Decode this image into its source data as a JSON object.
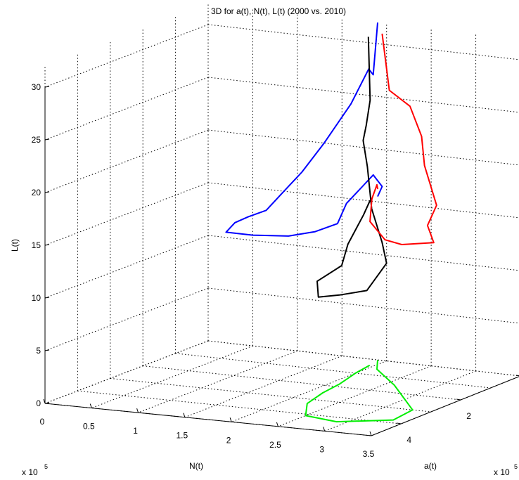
{
  "chart_data": {
    "type": "line",
    "title": "3D for a(t), N(t), L(t) (2000 vs. 2010)",
    "xlabel": "N(t)",
    "ylabel": "a(t)",
    "zlabel": "L(t)",
    "x_scale_label": "x 10",
    "x_scale_exp": "5",
    "y_scale_label": "x 10",
    "y_scale_exp": "5",
    "xlim": [
      0,
      3.5
    ],
    "ylim": [
      0,
      5
    ],
    "zlim": [
      0,
      30
    ],
    "x_ticks": [
      "0",
      "0.5",
      "1",
      "1.5",
      "2",
      "2.5",
      "3",
      "3.5"
    ],
    "y_ticks": [
      "0",
      "2",
      "4"
    ],
    "z_ticks": [
      "0",
      "5",
      "10",
      "15",
      "20",
      "25",
      "30"
    ],
    "grid": true,
    "series": [
      {
        "color": "#0000ff",
        "projection": "N-L side plane (a = 0)",
        "points": [
          [
            1.9,
            32
          ],
          [
            1.85,
            27
          ],
          [
            1.8,
            27.5
          ],
          [
            1.6,
            24
          ],
          [
            1.3,
            20
          ],
          [
            1.05,
            17
          ],
          [
            0.85,
            15
          ],
          [
            0.65,
            13
          ],
          [
            0.45,
            12.2
          ],
          [
            0.3,
            11.5
          ],
          [
            0.2,
            10.5
          ],
          [
            0.5,
            10.5
          ],
          [
            0.9,
            10.8
          ],
          [
            1.2,
            11.5
          ],
          [
            1.45,
            12.5
          ],
          [
            1.55,
            14.5
          ],
          [
            1.75,
            16.5
          ],
          [
            1.85,
            17.5
          ],
          [
            1.95,
            16.5
          ],
          [
            1.9,
            15.5
          ]
        ]
      },
      {
        "color": "#000000",
        "projection": "3D trajectory",
        "points": [
          [
            1.9,
            0.3,
            31
          ],
          [
            1.92,
            0.3,
            25
          ],
          [
            1.98,
            0.6,
            23
          ],
          [
            2.05,
            0.9,
            22
          ],
          [
            2.2,
            1.2,
            20
          ],
          [
            2.35,
            1.5,
            16.5
          ],
          [
            2.6,
            1.9,
            14
          ],
          [
            2.75,
            2.2,
            12.5
          ],
          [
            2.6,
            2.4,
            10
          ],
          [
            2.3,
            2.4,
            9.3
          ],
          [
            2.0,
            2.2,
            8.6
          ],
          [
            1.85,
            1.8,
            9.5
          ],
          [
            1.95,
            1.3,
            10.5
          ],
          [
            1.88,
            0.9,
            12
          ],
          [
            1.95,
            0.6,
            14.5
          ],
          [
            1.92,
            0.3,
            15.5
          ]
        ]
      },
      {
        "color": "#ff0000",
        "projection": "3D trajectory",
        "points": [
          [
            1.95,
            0,
            31
          ],
          [
            2.1,
            0.2,
            26
          ],
          [
            2.4,
            0.4,
            25
          ],
          [
            2.7,
            0.9,
            23
          ],
          [
            2.9,
            1.4,
            21
          ],
          [
            3.3,
            2.2,
            18.5
          ],
          [
            3.2,
            2.2,
            16.5
          ],
          [
            3.4,
            2.6,
            15.5
          ],
          [
            3.05,
            2.6,
            15
          ],
          [
            2.8,
            2.4,
            15
          ],
          [
            2.5,
            2.0,
            16
          ],
          [
            2.25,
            1.2,
            17
          ],
          [
            2.1,
            0.6,
            17.5
          ],
          [
            1.97,
            0.2,
            16.5
          ]
        ]
      },
      {
        "color": "#00ee00",
        "projection": "N-a floor plane (L = 0)",
        "points": [
          [
            1.9,
            0,
            0
          ],
          [
            2.1,
            0.6,
            0
          ],
          [
            2.6,
            1.5,
            0
          ],
          [
            3.3,
            3.0,
            0
          ],
          [
            3.35,
            3.8,
            0
          ],
          [
            2.9,
            4.3,
            0
          ],
          [
            2.5,
            4.1,
            0
          ],
          [
            2.25,
            3.3,
            0
          ],
          [
            2.15,
            2.5,
            0
          ],
          [
            2.1,
            1.8,
            0
          ],
          [
            2.0,
            1.0,
            0
          ],
          [
            1.95,
            0.4,
            0
          ]
        ]
      }
    ]
  }
}
